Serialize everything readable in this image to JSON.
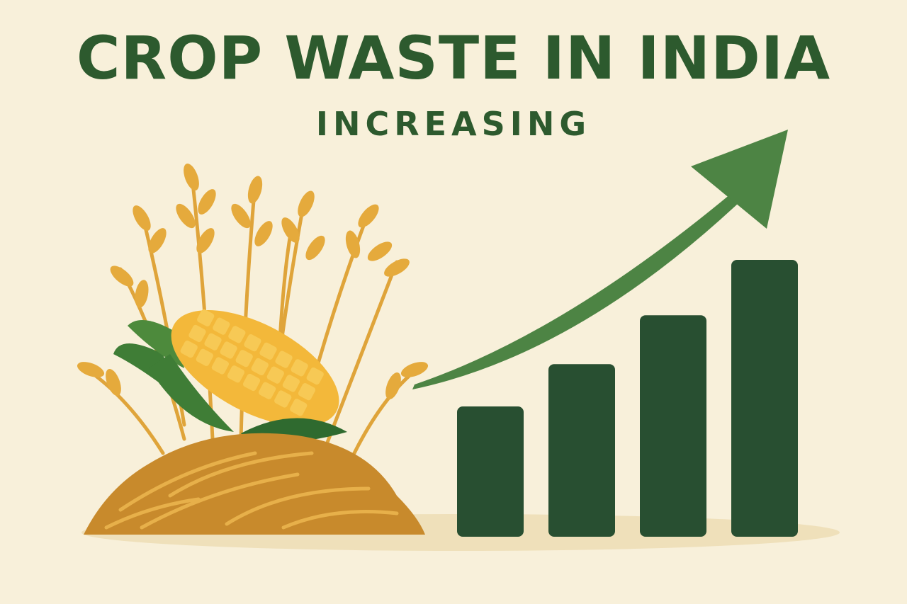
{
  "title": "CROP WASTE IN INDIA",
  "subtitle": "INCREASING",
  "colors": {
    "background": "#f8f0da",
    "title": "#2d5a2e",
    "bars": "#284f31",
    "arrow": "#4d8444",
    "corn": "#f3b83a",
    "wheat": "#dfa43a",
    "straw_pile": "#c88a2c",
    "leaf": "#3f7d36",
    "ground": "#efe0ba"
  },
  "icons": [
    "crop-waste-pile-illustration",
    "corn-cob-icon",
    "wheat-stalks-icon",
    "trend-up-arrow-icon"
  ],
  "chart_data": {
    "type": "bar",
    "values": [
      4.0,
      5.3,
      6.8,
      8.5
    ],
    "trend": "increasing"
  }
}
